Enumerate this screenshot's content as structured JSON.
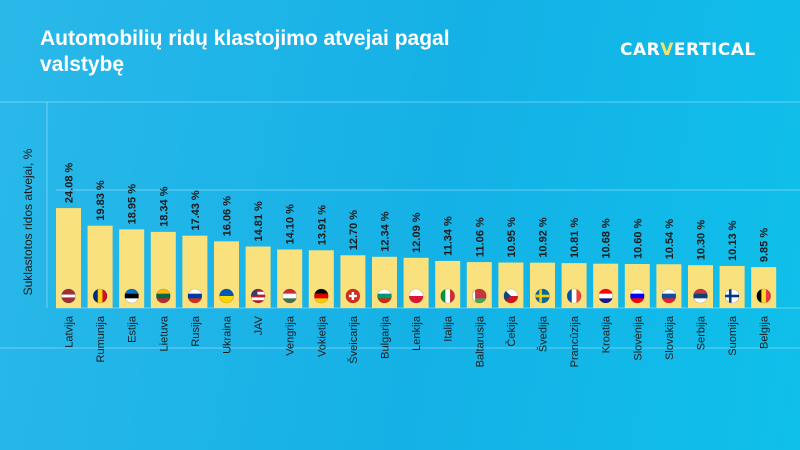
{
  "header": {
    "title": "Automobilių ridų klastojimo atvejai pagal valstybę",
    "logo_prefix": "CAR",
    "logo_accent": "V",
    "logo_suffix": "ERTICAL"
  },
  "colors": {
    "background": "#14b1e6",
    "bar": "#f9e27e",
    "text": "#1a1a1a",
    "logo_accent": "#f5e26a"
  },
  "chart_data": {
    "type": "bar",
    "title": "Automobilių ridų klastojimo atvejai pagal valstybę",
    "ylabel": "Suklastotos ridos atvejai, %",
    "xlabel": "",
    "ylim": [
      0,
      30
    ],
    "grid": true,
    "categories": [
      "Latvija",
      "Rumunija",
      "Estija",
      "Lietuva",
      "Rusija",
      "Ukraina",
      "JAV",
      "Vengrija",
      "Vokietija",
      "Šveicarija",
      "Bulgarija",
      "Lenkija",
      "Italija",
      "Baltarusija",
      "Čekija",
      "Švedija",
      "Prancūzija",
      "Kroatija",
      "Slovėnija",
      "Slovakija",
      "Serbija",
      "Suomija",
      "Belgija"
    ],
    "values": [
      24.08,
      19.83,
      18.95,
      18.34,
      17.43,
      16.06,
      14.81,
      14.1,
      13.91,
      12.7,
      12.34,
      12.09,
      11.34,
      11.06,
      10.95,
      10.92,
      10.81,
      10.68,
      10.6,
      10.54,
      10.3,
      10.13,
      9.85
    ],
    "value_labels": [
      "24.08 %",
      "19.83 %",
      "18.95 %",
      "18.34 %",
      "17.43 %",
      "16.06 %",
      "14.81 %",
      "14.10 %",
      "13.91 %",
      "12.70 %",
      "12.34 %",
      "12.09 %",
      "11.34 %",
      "11.06 %",
      "10.95 %",
      "10.92 %",
      "10.81 %",
      "10.68 %",
      "10.60 %",
      "10.54 %",
      "10.30 %",
      "10.13 %",
      "9.85 %"
    ],
    "flags": [
      {
        "type": "h",
        "colors": [
          "#9e3039",
          "#ffffff",
          "#9e3039"
        ],
        "w": [
          2,
          1,
          2
        ]
      },
      {
        "type": "v",
        "colors": [
          "#002b7f",
          "#fcd116",
          "#ce1126"
        ]
      },
      {
        "type": "h",
        "colors": [
          "#0072ce",
          "#000000",
          "#ffffff"
        ]
      },
      {
        "type": "h",
        "colors": [
          "#fdb913",
          "#006a44",
          "#c1272d"
        ]
      },
      {
        "type": "h",
        "colors": [
          "#ffffff",
          "#0039a6",
          "#d52b1e"
        ]
      },
      {
        "type": "h",
        "colors": [
          "#0057b7",
          "#ffd700"
        ]
      },
      {
        "type": "h",
        "colors": [
          "#b22234",
          "#ffffff",
          "#b22234",
          "#ffffff",
          "#b22234"
        ],
        "canton": "#3c3b6e"
      },
      {
        "type": "h",
        "colors": [
          "#ce2939",
          "#ffffff",
          "#477050"
        ]
      },
      {
        "type": "h",
        "colors": [
          "#000000",
          "#dd0000",
          "#ffce00"
        ]
      },
      {
        "type": "cross",
        "colors": [
          "#d52b1e",
          "#ffffff"
        ]
      },
      {
        "type": "h",
        "colors": [
          "#ffffff",
          "#00966e",
          "#d62612"
        ]
      },
      {
        "type": "h",
        "colors": [
          "#ffffff",
          "#dc143c"
        ]
      },
      {
        "type": "v",
        "colors": [
          "#009246",
          "#ffffff",
          "#ce2b37"
        ]
      },
      {
        "type": "h",
        "colors": [
          "#c8313e",
          "#c8313e",
          "#4aa657"
        ],
        "hoist": "#ffffff"
      },
      {
        "type": "h",
        "colors": [
          "#ffffff",
          "#d7141a"
        ],
        "triangle": "#11457e"
      },
      {
        "type": "nordic",
        "colors": [
          "#006aa7",
          "#fecc00"
        ]
      },
      {
        "type": "v",
        "colors": [
          "#0055a4",
          "#ffffff",
          "#ef4135"
        ]
      },
      {
        "type": "h",
        "colors": [
          "#ff0000",
          "#ffffff",
          "#171796"
        ]
      },
      {
        "type": "h",
        "colors": [
          "#ffffff",
          "#0000ff",
          "#ff0000"
        ]
      },
      {
        "type": "h",
        "colors": [
          "#ffffff",
          "#0b4ea2",
          "#ee1c25"
        ]
      },
      {
        "type": "h",
        "colors": [
          "#c6363c",
          "#0c4076",
          "#ffffff"
        ]
      },
      {
        "type": "nordic",
        "colors": [
          "#ffffff",
          "#003580"
        ]
      },
      {
        "type": "v",
        "colors": [
          "#000000",
          "#fdda24",
          "#ef3340"
        ]
      }
    ]
  }
}
